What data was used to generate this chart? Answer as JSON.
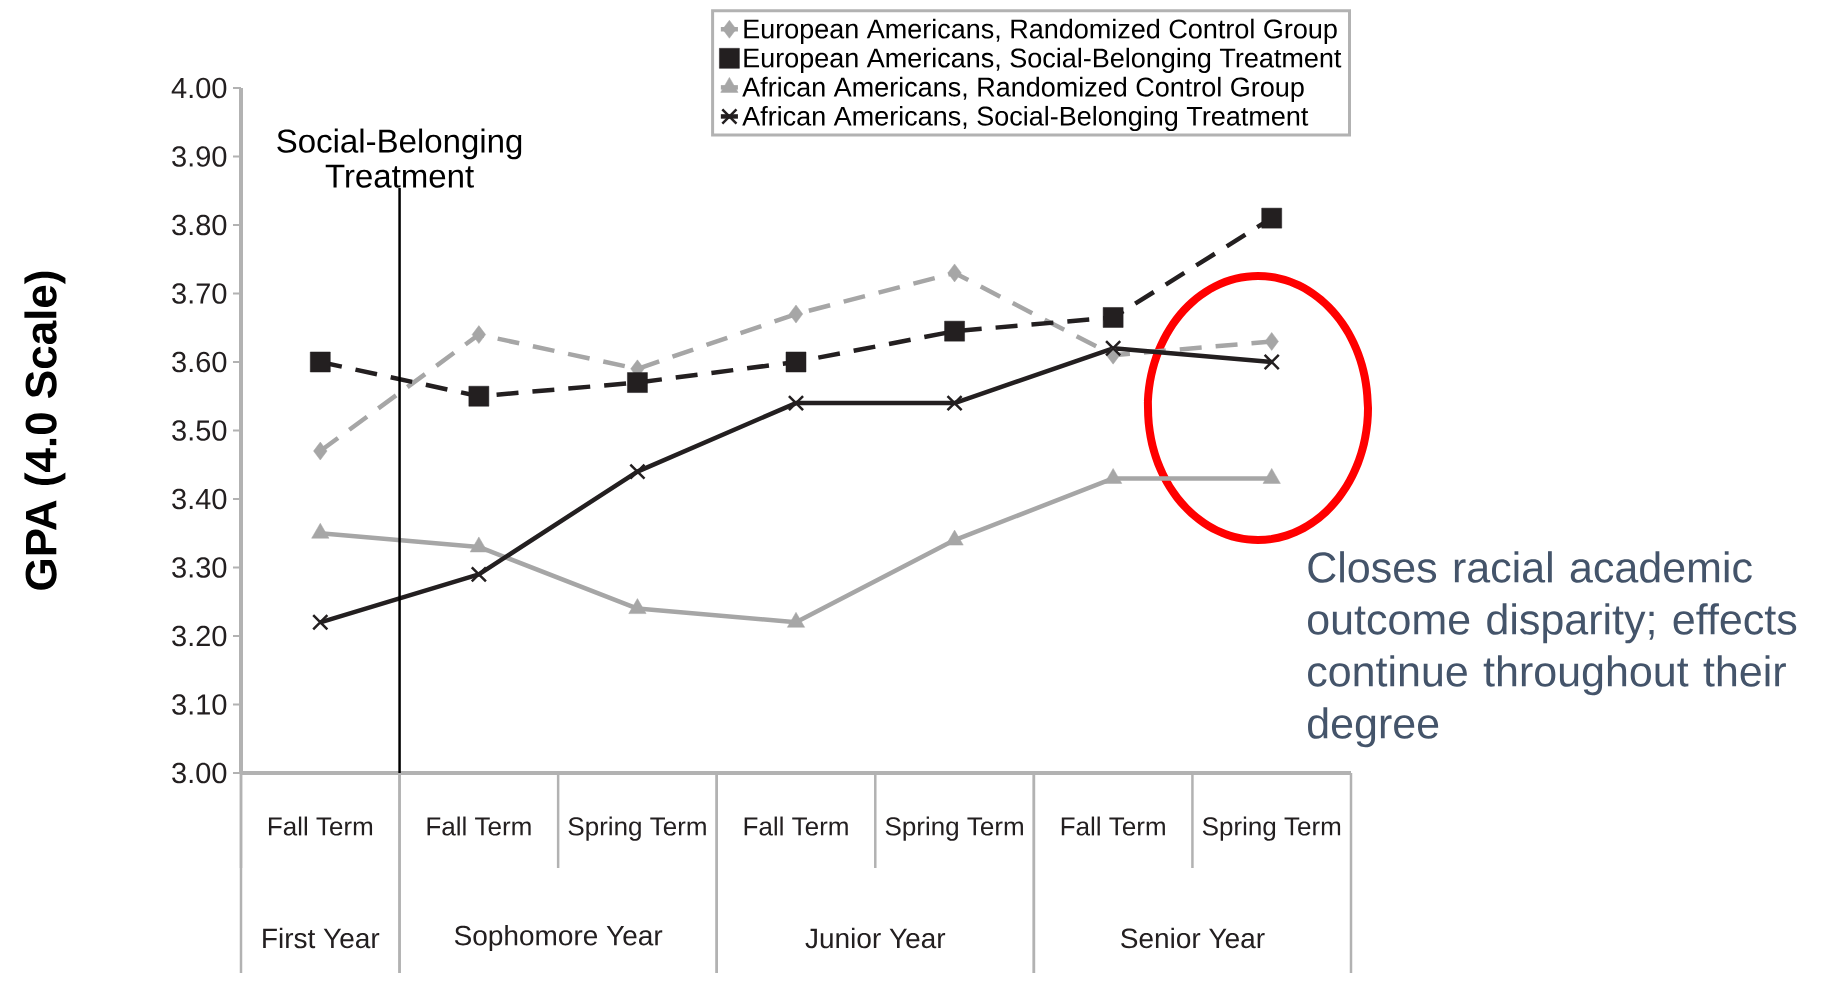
{
  "chart_data": {
    "type": "line",
    "ylabel": "GPA (4.0 Scale)",
    "categories": [
      "Fall Term",
      "Fall Term",
      "Spring Term",
      "Fall Term",
      "Spring Term",
      "Fall Term",
      "Spring Term"
    ],
    "series": [
      {
        "name": "European Americans, Randomized Control Group",
        "color": "#a6a6a6",
        "marker": "diamond",
        "line_style": "dashed",
        "values": [
          3.47,
          3.64,
          3.59,
          3.67,
          3.73,
          3.61,
          3.63
        ]
      },
      {
        "name": "European Americans, Social-Belonging Treatment",
        "color": "#231f20",
        "marker": "square",
        "line_style": "dashed",
        "values": [
          3.6,
          3.55,
          3.57,
          3.6,
          3.645,
          3.665,
          3.81
        ]
      },
      {
        "name": "African Americans, Randomized Control Group",
        "color": "#a6a6a6",
        "marker": "triangle",
        "line_style": "solid",
        "values": [
          3.35,
          3.33,
          3.24,
          3.22,
          3.34,
          3.43,
          3.43
        ]
      },
      {
        "name": "African Americans, Social-Belonging Treatment",
        "color": "#231f20",
        "marker": "cross",
        "line_style": "solid",
        "values": [
          3.22,
          3.29,
          3.44,
          3.54,
          3.54,
          3.62,
          3.6
        ]
      }
    ],
    "ylim": [
      3.0,
      4.0
    ],
    "yticks": [
      {
        "value": 3.0,
        "label": "3.00"
      },
      {
        "value": 3.1,
        "label": "3.10"
      },
      {
        "value": 3.2,
        "label": "3.20"
      },
      {
        "value": 3.3,
        "label": "3.30"
      },
      {
        "value": 3.4,
        "label": "3.40"
      },
      {
        "value": 3.5,
        "label": "3.50"
      },
      {
        "value": 3.6,
        "label": "3.60"
      },
      {
        "value": 3.7,
        "label": "3.70"
      },
      {
        "value": 3.8,
        "label": "3.80"
      },
      {
        "value": 3.9,
        "label": "3.90"
      },
      {
        "value": 4.0,
        "label": "4.00"
      }
    ],
    "legend": "top right",
    "annotations": [
      "First Year",
      "Sophomore Year",
      "Junior Year",
      "Senior Year",
      "Closes racial academic outcome disparity; effects continue throughout their degree",
      "Social-Belonging Treatment"
    ]
  }
}
